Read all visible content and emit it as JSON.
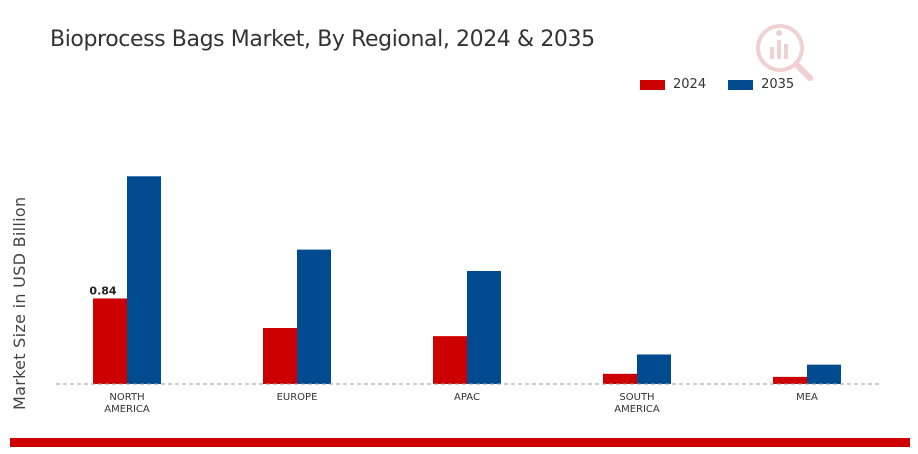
{
  "chart_data": {
    "type": "bar",
    "title": "Bioprocess Bags Market, By Regional, 2024 & 2035",
    "xlabel": "",
    "ylabel": "Market Size in USD Billion",
    "ylim": [
      0,
      2.2
    ],
    "grid": false,
    "legend_position": "top-right",
    "categories": [
      [
        "NORTH",
        "AMERICA"
      ],
      [
        "EUROPE"
      ],
      [
        "APAC"
      ],
      [
        "SOUTH",
        "AMERICA"
      ],
      [
        "MEA"
      ]
    ],
    "series": [
      {
        "name": "2024",
        "color": "#cc0000",
        "values": [
          0.84,
          0.55,
          0.47,
          0.1,
          0.07
        ]
      },
      {
        "name": "2035",
        "color": "#004a8f",
        "values": [
          2.04,
          1.32,
          1.11,
          0.29,
          0.19
        ]
      }
    ],
    "data_labels": [
      {
        "series": 0,
        "index": 0,
        "text": "0.84"
      }
    ]
  },
  "logo": {
    "icon": "analytics-logo-icon"
  }
}
